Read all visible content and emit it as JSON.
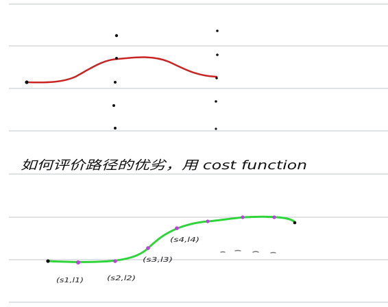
{
  "note": {
    "heading": "如何评价路径的优劣，用 cost function"
  },
  "point_labels": [
    "(s1,l1)",
    "(s2,l2)",
    "(s3,l3)",
    "(s4,l4)"
  ],
  "colors": {
    "ruled_line": "#bfc3c8",
    "red_curve": "#c82424",
    "green_curve": "#2fd43b",
    "point_mark": "#bf3fe0",
    "ink": "#111111"
  }
}
